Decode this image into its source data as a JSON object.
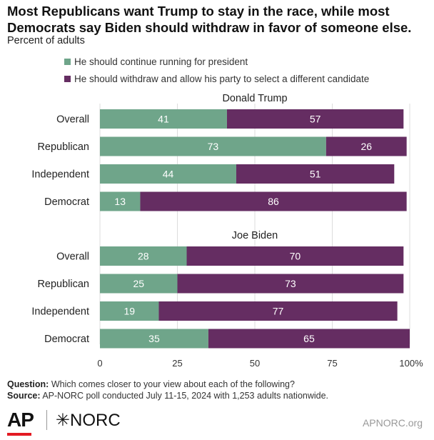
{
  "title": "Most Republicans want Trump to stay in the race, while most Democrats say Biden should withdraw in favor of someone else.",
  "subtitle": "Percent of adults",
  "legend": [
    {
      "label": "He should continue running for president",
      "color": "#6fa58a"
    },
    {
      "label": "He should withdraw and allow his party to select a different candidate",
      "color": "#652d62"
    }
  ],
  "chart_data": {
    "type": "bar",
    "orientation": "horizontal",
    "stacked": true,
    "xlim": [
      0,
      100
    ],
    "xticks": [
      "0",
      "25",
      "50",
      "75",
      "100%"
    ],
    "groups": [
      {
        "title": "Donald Trump",
        "categories": [
          "Overall",
          "Republican",
          "Independent",
          "Democrat"
        ],
        "series": [
          {
            "name": "He should continue running for president",
            "values": [
              41,
              73,
              44,
              13
            ]
          },
          {
            "name": "He should withdraw and allow his party to select a different candidate",
            "values": [
              57,
              26,
              51,
              86
            ]
          }
        ]
      },
      {
        "title": "Joe Biden",
        "categories": [
          "Overall",
          "Republican",
          "Independent",
          "Democrat"
        ],
        "series": [
          {
            "name": "He should continue running for president",
            "values": [
              28,
              25,
              19,
              35
            ]
          },
          {
            "name": "He should withdraw and allow his party to select a different candidate",
            "values": [
              70,
              73,
              77,
              65
            ]
          }
        ]
      }
    ]
  },
  "footer": {
    "question_label": "Question:",
    "question_text": " Which comes closer to your view about each of the following?",
    "source_label": "Source:",
    "source_text": " AP-NORC poll conducted July 11-15, 2024 with 1,253 adults nationwide."
  },
  "logos": {
    "ap": "AP",
    "norc": "✳NORC",
    "site": "APNORC.org"
  }
}
